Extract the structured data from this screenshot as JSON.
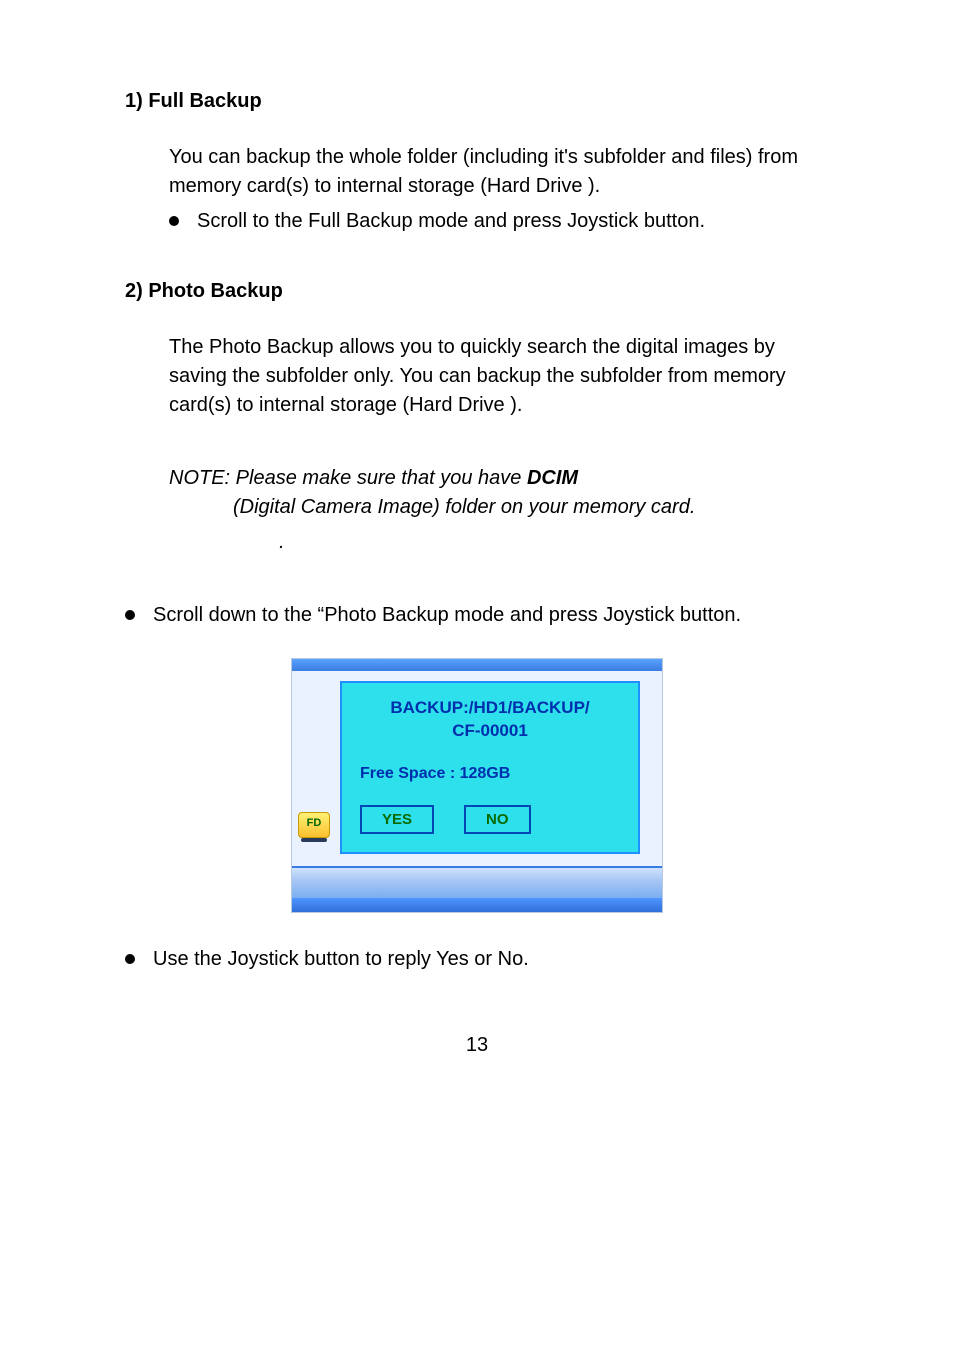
{
  "section1": {
    "heading": "1) Full Backup",
    "para": "You can backup the whole folder (including it's subfolder and files) from memory card(s) to internal storage (Hard Drive ).",
    "bullet": "Scroll to the Full Backup mode and press Joystick button."
  },
  "section2": {
    "heading": "2) Photo Backup",
    "para": "The Photo Backup allows you to quickly search the digital images by saving the subfolder only. You can backup the subfolder from memory card(s) to internal storage (Hard Drive )."
  },
  "note": {
    "line1_pre": "NOTE: Please make sure that you have ",
    "dcim": "DCIM",
    "line2": "(Digital Camera Image) folder on your memory card.",
    "dot": "."
  },
  "bullet_scroll": "Scroll down to the “Photo Backup mode and press Joystick button.",
  "dialog": {
    "title_line1": "BACKUP:/HD1/BACKUP/",
    "title_line2": "CF-00001",
    "free_space": "Free Space : 128GB",
    "yes": "YES",
    "no": "NO",
    "fd_label": "FD",
    "panel_bg": "#2de0ec",
    "panel_border": "#1f8fff",
    "text_color": "#002fae",
    "btn_border": "#0048b3",
    "btn_text": "#0a6b00"
  },
  "bullet_reply": "Use the Joystick button to reply Yes or No.",
  "page_number": "13"
}
